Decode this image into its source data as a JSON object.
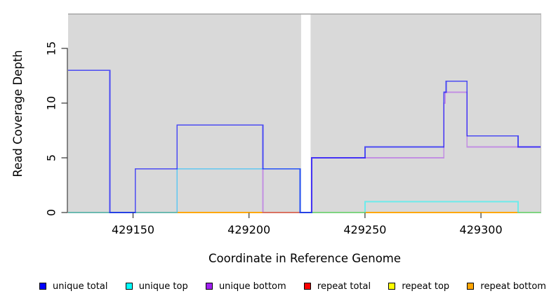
{
  "chart_data": {
    "type": "line",
    "subtype": "step-coverage-plot",
    "title": "",
    "xlabel": "Coordinate in Reference Genome",
    "ylabel": "Read Coverage Depth",
    "xlim": [
      429122,
      429326
    ],
    "ylim": [
      0,
      18.1
    ],
    "xticks": [
      429150,
      429200,
      429250,
      429300
    ],
    "xtick_labels": [
      "429150",
      "429200",
      "429250",
      "429300"
    ],
    "yticks": [
      0,
      5,
      10,
      15
    ],
    "ytick_labels": [
      "0",
      "5",
      "10",
      "15"
    ],
    "grid": false,
    "plot_bg": "#d9d9d9",
    "mask_region": {
      "from": 429222.45,
      "to": 429226.55,
      "color": "#ffffff"
    },
    "series": [
      {
        "name": "repeat total",
        "color": "#FF0000",
        "opacity": 0.6,
        "steps": [
          [
            429122,
            0
          ]
        ]
      },
      {
        "name": "repeat top",
        "color": "#FFFF00",
        "opacity": 0.6,
        "steps": [
          [
            429122,
            0
          ]
        ]
      },
      {
        "name": "repeat bottom",
        "color": "#FFA500",
        "opacity": 0.9,
        "steps": [
          [
            429122,
            0
          ]
        ]
      },
      {
        "name": "unique bottom",
        "color": "#A020F0",
        "opacity": 0.4,
        "steps": [
          [
            429122,
            0
          ],
          [
            429169,
            4
          ],
          [
            429206,
            0
          ],
          [
            429227,
            5
          ],
          [
            429284,
            10
          ],
          [
            429284.5,
            11
          ],
          [
            429294,
            6
          ]
        ]
      },
      {
        "name": "unique top",
        "color": "#00FFFF",
        "opacity": 0.5,
        "steps": [
          [
            429122,
            0
          ],
          [
            429169,
            4
          ],
          [
            429222,
            0
          ],
          [
            429250,
            1
          ],
          [
            429316,
            0
          ]
        ]
      },
      {
        "name": "unique total",
        "color": "#0000FF",
        "opacity": 0.65,
        "steps": [
          [
            429122,
            13
          ],
          [
            429140,
            0
          ],
          [
            429151,
            4
          ],
          [
            429169,
            8
          ],
          [
            429206,
            4
          ],
          [
            429222,
            0
          ],
          [
            429227,
            5
          ],
          [
            429250,
            6
          ],
          [
            429284,
            11
          ],
          [
            429285,
            12
          ],
          [
            429294,
            7
          ],
          [
            429316,
            6
          ]
        ]
      }
    ],
    "legend_position": "bottom"
  },
  "legend": {
    "items": [
      {
        "label": "unique total",
        "color": "#0000FF"
      },
      {
        "label": "unique top",
        "color": "#00FFFF"
      },
      {
        "label": "unique bottom",
        "color": "#A020F0"
      },
      {
        "label": "repeat total",
        "color": "#FF0000"
      },
      {
        "label": "repeat top",
        "color": "#FFFF00"
      },
      {
        "label": "repeat bottom",
        "color": "#FFA500"
      }
    ]
  }
}
